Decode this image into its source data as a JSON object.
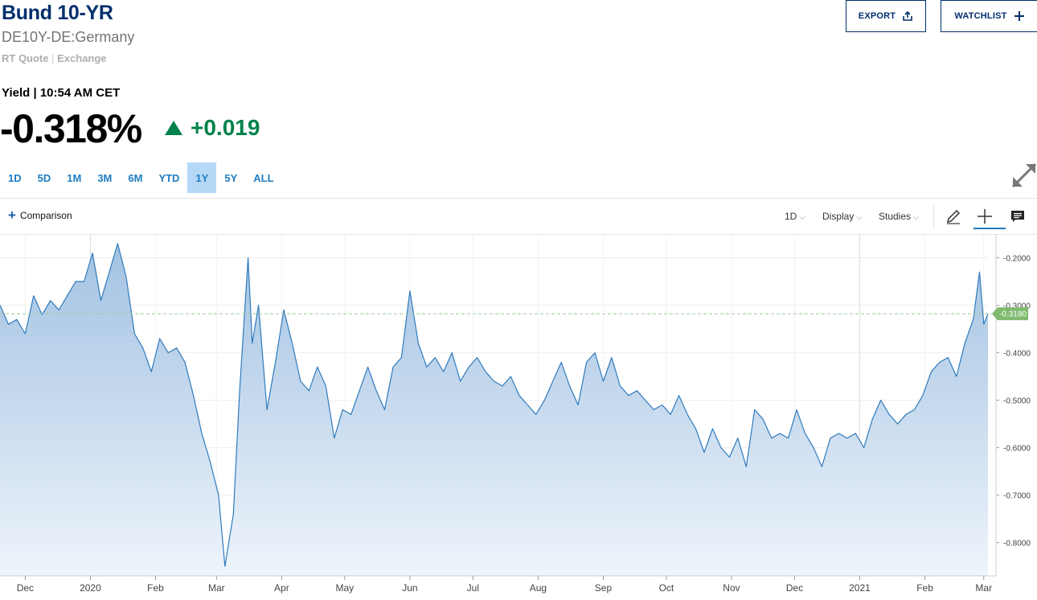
{
  "header": {
    "title": "Bund 10-YR",
    "subtitle": "DE10Y-DE:Germany",
    "quote_type": "RT Quote",
    "exchange": "Exchange",
    "export_label": "EXPORT",
    "watchlist_label": "WATCHLIST"
  },
  "quote": {
    "label": "Yield | 10:54 AM CET",
    "price": "-0.318%",
    "change": "+0.019",
    "change_color": "#00834a"
  },
  "ranges": {
    "items": [
      "1D",
      "5D",
      "1M",
      "3M",
      "6M",
      "YTD",
      "1Y",
      "5Y",
      "ALL"
    ],
    "active": "1Y"
  },
  "toolbar": {
    "comparison_label": "Comparison",
    "interval_label": "1D",
    "display_label": "Display",
    "studies_label": "Studies"
  },
  "chart_data": {
    "type": "area",
    "x_label_list": [
      "Dec",
      "2020",
      "Feb",
      "Mar",
      "Apr",
      "May",
      "Jun",
      "Jul",
      "Aug",
      "Sep",
      "Oct",
      "Nov",
      "Dec",
      "2021",
      "Feb",
      "Mar"
    ],
    "ylim": [
      -0.87,
      -0.15
    ],
    "y_ticks": [
      -0.2,
      -0.3,
      -0.4,
      -0.5,
      -0.6,
      -0.7,
      -0.8
    ],
    "y_tick_labels": [
      "-0.2000",
      "-0.3000",
      "-0.4000",
      "-0.5000",
      "-0.6000",
      "-0.7000",
      "-0.8000"
    ],
    "x_range": [
      "2019-11-19",
      "2021-03-03"
    ],
    "current_value": -0.318,
    "current_label": "-0.3180",
    "line_color": "#2f7bbd",
    "current_badge_color": "#7fba6f",
    "series": [
      {
        "x": [
          "2019-11-19",
          "2019-11-23",
          "2019-11-27",
          "2019-12-01",
          "2019-12-05",
          "2019-12-09",
          "2019-12-13",
          "2019-12-17",
          "2019-12-21",
          "2019-12-25",
          "2019-12-29",
          "2020-01-02",
          "2020-01-06",
          "2020-01-10",
          "2020-01-14",
          "2020-01-18",
          "2020-01-22",
          "2020-01-26",
          "2020-01-30",
          "2020-02-03",
          "2020-02-07",
          "2020-02-11",
          "2020-02-15",
          "2020-02-19",
          "2020-02-23",
          "2020-02-27",
          "2020-03-02",
          "2020-03-05",
          "2020-03-09",
          "2020-03-12",
          "2020-03-16",
          "2020-03-18",
          "2020-03-21",
          "2020-03-25",
          "2020-03-29",
          "2020-04-02",
          "2020-04-06",
          "2020-04-10",
          "2020-04-14",
          "2020-04-18",
          "2020-04-22",
          "2020-04-26",
          "2020-04-30",
          "2020-05-04",
          "2020-05-08",
          "2020-05-12",
          "2020-05-16",
          "2020-05-20",
          "2020-05-24",
          "2020-05-28",
          "2020-06-01",
          "2020-06-05",
          "2020-06-09",
          "2020-06-13",
          "2020-06-17",
          "2020-06-21",
          "2020-06-25",
          "2020-06-29",
          "2020-07-03",
          "2020-07-07",
          "2020-07-11",
          "2020-07-15",
          "2020-07-19",
          "2020-07-23",
          "2020-07-27",
          "2020-07-31",
          "2020-08-04",
          "2020-08-08",
          "2020-08-12",
          "2020-08-16",
          "2020-08-20",
          "2020-08-24",
          "2020-08-28",
          "2020-09-01",
          "2020-09-05",
          "2020-09-09",
          "2020-09-13",
          "2020-09-17",
          "2020-09-21",
          "2020-09-25",
          "2020-09-29",
          "2020-10-03",
          "2020-10-07",
          "2020-10-11",
          "2020-10-15",
          "2020-10-19",
          "2020-10-23",
          "2020-10-27",
          "2020-10-31",
          "2020-11-04",
          "2020-11-08",
          "2020-11-12",
          "2020-11-16",
          "2020-11-20",
          "2020-11-24",
          "2020-11-28",
          "2020-12-02",
          "2020-12-06",
          "2020-12-10",
          "2020-12-14",
          "2020-12-18",
          "2020-12-22",
          "2020-12-26",
          "2020-12-30",
          "2021-01-03",
          "2021-01-07",
          "2021-01-11",
          "2021-01-15",
          "2021-01-19",
          "2021-01-23",
          "2021-01-27",
          "2021-01-31",
          "2021-02-04",
          "2021-02-08",
          "2021-02-12",
          "2021-02-16",
          "2021-02-20",
          "2021-02-24",
          "2021-02-27",
          "2021-03-01",
          "2021-03-03"
        ],
        "y": [
          -0.3,
          -0.34,
          -0.33,
          -0.36,
          -0.28,
          -0.32,
          -0.29,
          -0.31,
          -0.28,
          -0.25,
          -0.25,
          -0.19,
          -0.29,
          -0.23,
          -0.17,
          -0.24,
          -0.36,
          -0.39,
          -0.44,
          -0.37,
          -0.4,
          -0.39,
          -0.42,
          -0.49,
          -0.57,
          -0.63,
          -0.7,
          -0.85,
          -0.74,
          -0.48,
          -0.2,
          -0.38,
          -0.3,
          -0.52,
          -0.42,
          -0.31,
          -0.38,
          -0.46,
          -0.48,
          -0.43,
          -0.47,
          -0.58,
          -0.52,
          -0.53,
          -0.48,
          -0.43,
          -0.48,
          -0.52,
          -0.43,
          -0.41,
          -0.27,
          -0.38,
          -0.43,
          -0.41,
          -0.44,
          -0.4,
          -0.46,
          -0.43,
          -0.41,
          -0.44,
          -0.46,
          -0.47,
          -0.45,
          -0.49,
          -0.51,
          -0.53,
          -0.5,
          -0.46,
          -0.42,
          -0.47,
          -0.51,
          -0.42,
          -0.4,
          -0.46,
          -0.41,
          -0.47,
          -0.49,
          -0.48,
          -0.5,
          -0.52,
          -0.51,
          -0.53,
          -0.49,
          -0.53,
          -0.56,
          -0.61,
          -0.56,
          -0.6,
          -0.62,
          -0.58,
          -0.64,
          -0.52,
          -0.54,
          -0.58,
          -0.57,
          -0.58,
          -0.52,
          -0.57,
          -0.6,
          -0.64,
          -0.58,
          -0.57,
          -0.58,
          -0.57,
          -0.6,
          -0.54,
          -0.5,
          -0.53,
          -0.55,
          -0.53,
          -0.52,
          -0.49,
          -0.44,
          -0.42,
          -0.41,
          -0.45,
          -0.38,
          -0.33,
          -0.23,
          -0.34,
          -0.318
        ]
      }
    ]
  }
}
